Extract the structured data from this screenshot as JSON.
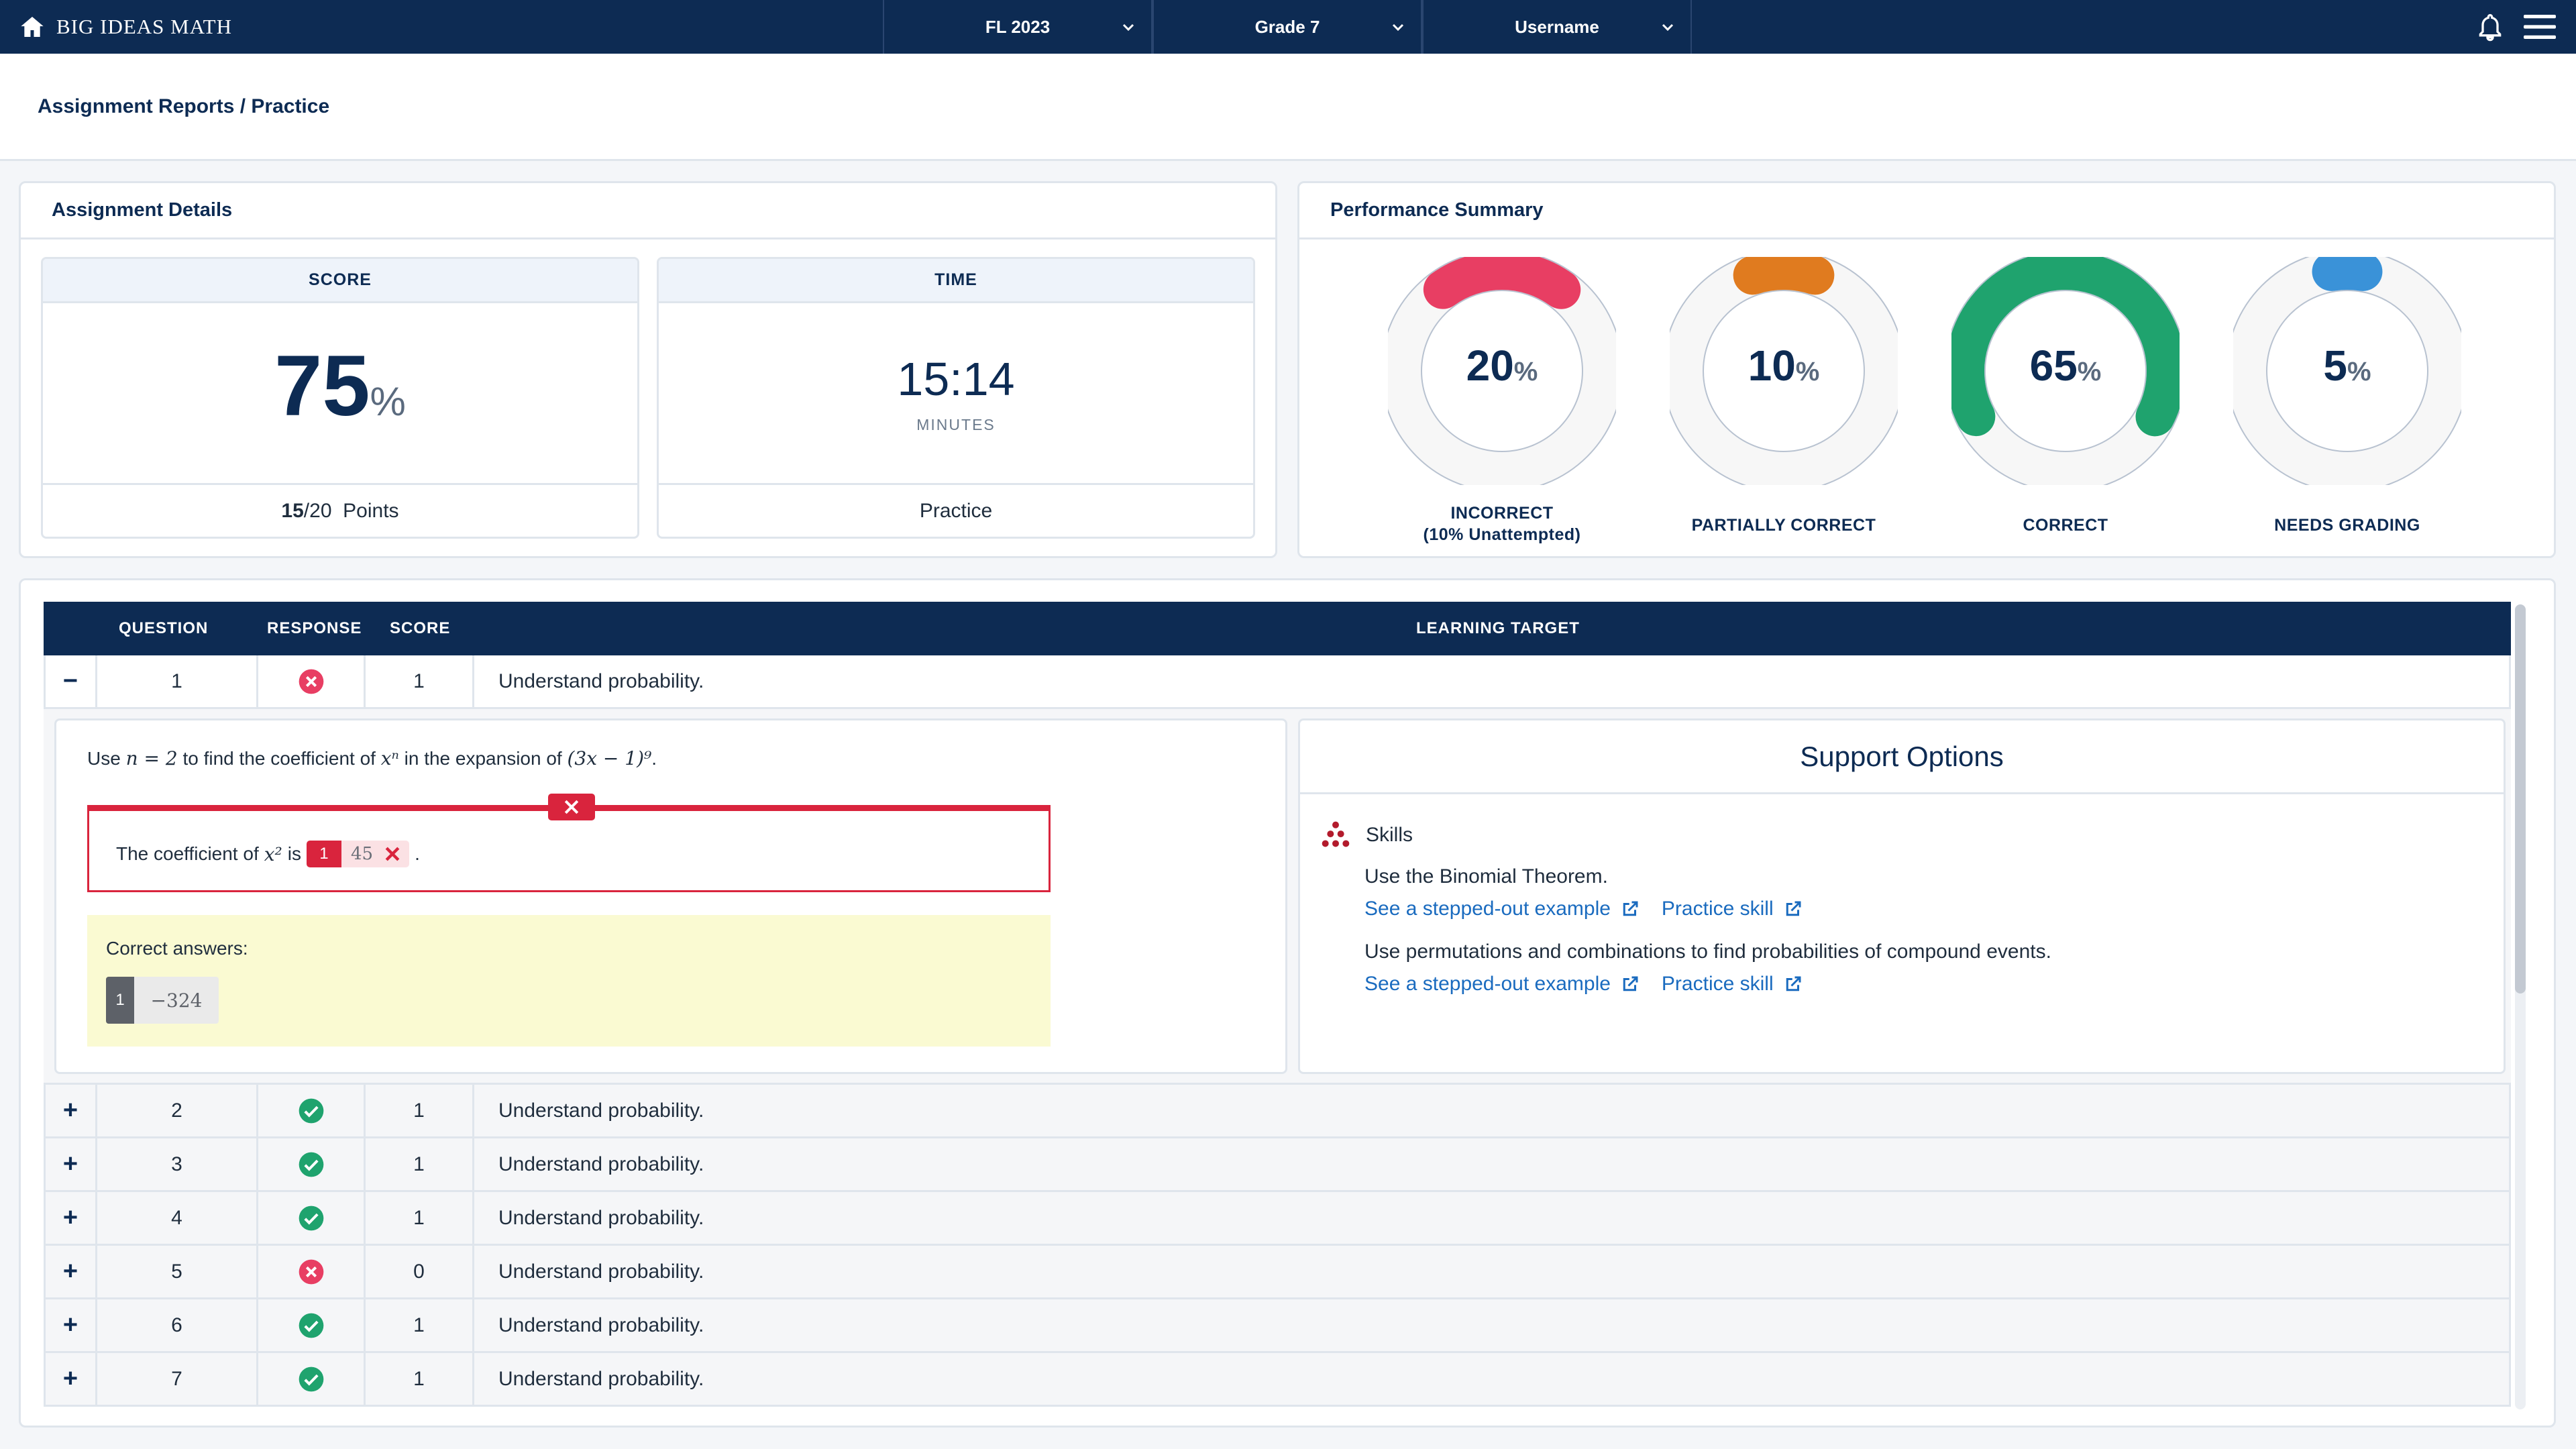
{
  "nav": {
    "brand": "BIG IDEAS MATH",
    "dropdowns": [
      "FL 2023",
      "Grade 7",
      "Username"
    ]
  },
  "breadcrumb": "Assignment Reports / Practice",
  "details": {
    "title": "Assignment Details",
    "score_label": "SCORE",
    "score_value": "75",
    "score_unit": "%",
    "points_earned": "15",
    "points_rest": "/20  Points",
    "time_label": "TIME",
    "time_value": "15:14",
    "time_unit": "MINUTES",
    "mode": "Practice"
  },
  "performance": {
    "title": "Performance Summary",
    "items": [
      {
        "value": "20",
        "unit": "%",
        "label": "INCORRECT",
        "sublabel": "(10% Unattempted)",
        "fraction": 0.2,
        "color": "#e83e63"
      },
      {
        "value": "10",
        "unit": "%",
        "label": "PARTIALLY CORRECT",
        "sublabel": "",
        "fraction": 0.1,
        "color": "#e07b1f"
      },
      {
        "value": "65",
        "unit": "%",
        "label": "CORRECT",
        "sublabel": "",
        "fraction": 0.65,
        "color": "#1fa36e"
      },
      {
        "value": "5",
        "unit": "%",
        "label": "NEEDS GRADING",
        "sublabel": "",
        "fraction": 0.05,
        "color": "#3a92d8"
      }
    ]
  },
  "table": {
    "headers": {
      "question": "QUESTION",
      "response": "RESPONSE",
      "score": "SCORE",
      "learning_target": "LEARNING TARGET"
    },
    "rows": [
      {
        "toggle": "−",
        "question": "1",
        "response": "incorrect",
        "score": "1",
        "target": "Understand probability."
      },
      {
        "toggle": "+",
        "question": "2",
        "response": "correct",
        "score": "1",
        "target": "Understand probability."
      },
      {
        "toggle": "+",
        "question": "3",
        "response": "correct",
        "score": "1",
        "target": "Understand probability."
      },
      {
        "toggle": "+",
        "question": "4",
        "response": "correct",
        "score": "1",
        "target": "Understand probability."
      },
      {
        "toggle": "+",
        "question": "5",
        "response": "incorrect",
        "score": "0",
        "target": "Understand probability."
      },
      {
        "toggle": "+",
        "question": "6",
        "response": "correct",
        "score": "1",
        "target": "Understand probability."
      },
      {
        "toggle": "+",
        "question": "7",
        "response": "correct",
        "score": "1",
        "target": "Understand probability."
      }
    ]
  },
  "question_detail": {
    "prompt_pre": "Use",
    "prompt_n": "n = 2",
    "prompt_mid": "to find the coefficient of",
    "prompt_x": "xⁿ",
    "prompt_mid2": "in the expansion of",
    "prompt_expr": "(3x − 1)⁹",
    "prompt_end": ".",
    "answer_pre": "The coefficient of",
    "answer_x": "x²",
    "answer_is": "is",
    "answer_index": "1",
    "answer_value": "45",
    "answer_end": ".",
    "correct_label": "Correct answers:",
    "correct_index": "1",
    "correct_value": "−324"
  },
  "support": {
    "title": "Support Options",
    "skills_label": "Skills",
    "items": [
      {
        "text": "Use the Binomial Theorem.",
        "link1": "See a stepped-out example",
        "link2": "Practice skill"
      },
      {
        "text": "Use permutations and combinations to find probabilities of compound events.",
        "link1": "See a stepped-out example",
        "link2": "Practice skill"
      }
    ]
  }
}
